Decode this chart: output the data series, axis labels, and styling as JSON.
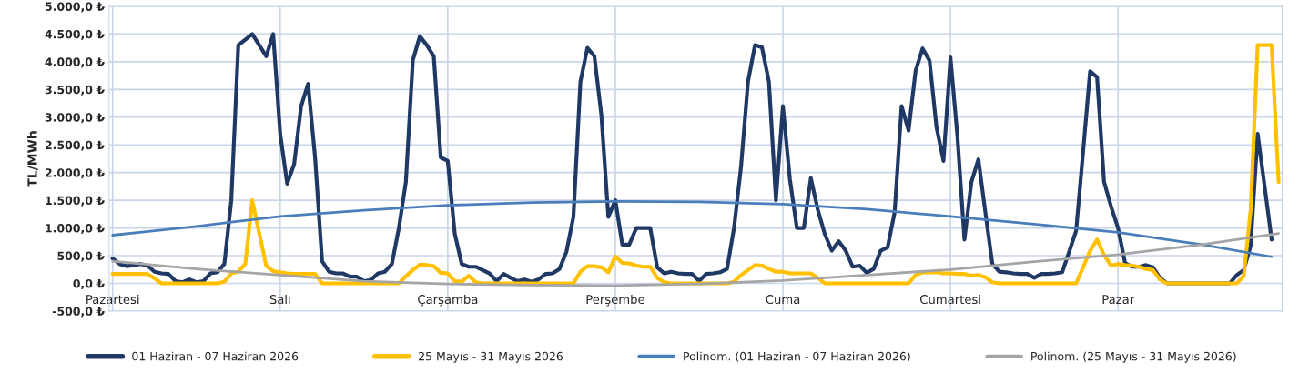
{
  "chart_data": {
    "type": "line",
    "ylabel": "TL/MWh",
    "categories": [
      "Pazartesi",
      null,
      null,
      null,
      null,
      null,
      null,
      null,
      null,
      null,
      null,
      null,
      null,
      null,
      null,
      null,
      null,
      null,
      null,
      null,
      null,
      null,
      null,
      null,
      "Salı",
      null,
      null,
      null,
      null,
      null,
      null,
      null,
      null,
      null,
      null,
      null,
      null,
      null,
      null,
      null,
      null,
      null,
      null,
      null,
      null,
      null,
      null,
      null,
      "Çarşamba",
      null,
      null,
      null,
      null,
      null,
      null,
      null,
      null,
      null,
      null,
      null,
      null,
      null,
      null,
      null,
      null,
      null,
      null,
      null,
      null,
      null,
      null,
      null,
      "Perşembe",
      null,
      null,
      null,
      null,
      null,
      null,
      null,
      null,
      null,
      null,
      null,
      null,
      null,
      null,
      null,
      null,
      null,
      null,
      null,
      null,
      null,
      null,
      null,
      "Cuma",
      null,
      null,
      null,
      null,
      null,
      null,
      null,
      null,
      null,
      null,
      null,
      null,
      null,
      null,
      null,
      null,
      null,
      null,
      null,
      null,
      null,
      null,
      null,
      "Cumartesi",
      null,
      null,
      null,
      null,
      null,
      null,
      null,
      null,
      null,
      null,
      null,
      null,
      null,
      null,
      null,
      null,
      null,
      null,
      null,
      null,
      null,
      null,
      null,
      "Pazar",
      null,
      null,
      null,
      null,
      null,
      null,
      null,
      null,
      null,
      null,
      null,
      null,
      null,
      null,
      null,
      null,
      null,
      null,
      null,
      null,
      null,
      null,
      null
    ],
    "series": [
      {
        "name": "01 Haziran - 07 Haziran 2026",
        "color": "#1f3864",
        "values": [
          450,
          350,
          310,
          330,
          350,
          320,
          210,
          180,
          170,
          40,
          20,
          70,
          20,
          40,
          180,
          200,
          350,
          1500,
          4300,
          4400,
          4500,
          4300,
          4100,
          4500,
          2700,
          1800,
          2150,
          3200,
          3600,
          2270,
          400,
          210,
          180,
          180,
          120,
          120,
          40,
          60,
          180,
          210,
          350,
          1000,
          1830,
          4030,
          4460,
          4300,
          4100,
          2270,
          2210,
          900,
          350,
          300,
          300,
          240,
          180,
          40,
          170,
          100,
          40,
          70,
          30,
          70,
          170,
          180,
          260,
          570,
          1200,
          3640,
          4250,
          4100,
          3040,
          1200,
          1500,
          700,
          700,
          1000,
          1000,
          1000,
          290,
          180,
          210,
          180,
          170,
          170,
          40,
          170,
          180,
          200,
          260,
          1000,
          2100,
          3640,
          4300,
          4260,
          3640,
          1500,
          3200,
          1880,
          1000,
          1000,
          1900,
          1330,
          890,
          590,
          760,
          590,
          300,
          320,
          190,
          260,
          590,
          650,
          1280,
          3200,
          2760,
          3830,
          4240,
          4020,
          2820,
          2210,
          4080,
          2650,
          790,
          1830,
          2240,
          1280,
          350,
          210,
          200,
          180,
          170,
          170,
          100,
          170,
          170,
          180,
          200,
          570,
          950,
          2380,
          3830,
          3720,
          1830,
          1390,
          1000,
          370,
          300,
          300,
          330,
          290,
          100,
          0,
          0,
          0,
          0,
          0,
          0,
          0,
          0,
          0,
          0,
          150,
          240,
          680,
          2700,
          1750,
          790,
          null
        ]
      },
      {
        "name": "25 Mayıs - 31 Mayıs 2026",
        "color": "#ffc000",
        "values": [
          170,
          170,
          170,
          170,
          170,
          170,
          90,
          0,
          0,
          0,
          0,
          0,
          0,
          0,
          0,
          0,
          30,
          180,
          210,
          350,
          1500,
          900,
          320,
          220,
          200,
          180,
          170,
          170,
          170,
          170,
          0,
          0,
          0,
          0,
          0,
          0,
          0,
          0,
          0,
          0,
          0,
          0,
          130,
          240,
          340,
          330,
          310,
          190,
          180,
          40,
          30,
          140,
          20,
          0,
          0,
          0,
          0,
          0,
          0,
          0,
          0,
          0,
          0,
          0,
          0,
          0,
          0,
          210,
          310,
          310,
          290,
          200,
          490,
          370,
          360,
          320,
          300,
          300,
          100,
          20,
          0,
          0,
          0,
          0,
          0,
          0,
          0,
          0,
          0,
          30,
          150,
          240,
          330,
          320,
          260,
          210,
          210,
          180,
          180,
          180,
          180,
          100,
          0,
          0,
          0,
          0,
          0,
          0,
          0,
          0,
          0,
          0,
          0,
          0,
          0,
          150,
          200,
          200,
          200,
          180,
          180,
          170,
          170,
          140,
          150,
          110,
          20,
          0,
          0,
          0,
          0,
          0,
          0,
          0,
          0,
          0,
          0,
          0,
          0,
          290,
          590,
          790,
          510,
          320,
          350,
          330,
          320,
          300,
          260,
          240,
          70,
          0,
          0,
          0,
          0,
          0,
          0,
          0,
          0,
          0,
          0,
          0,
          130,
          1330,
          4300,
          4300,
          4300,
          1830
        ]
      },
      {
        "name": "Polinom. (01 Haziran - 07 Haziran 2026)",
        "type": "line",
        "color": "#4a7ebb",
        "values": [
          870,
          null,
          null,
          null,
          null,
          null,
          null,
          null,
          null,
          null,
          null,
          null,
          1030,
          null,
          null,
          null,
          null,
          null,
          null,
          null,
          null,
          null,
          null,
          null,
          1210,
          null,
          null,
          null,
          null,
          null,
          null,
          null,
          null,
          null,
          null,
          null,
          1320,
          null,
          null,
          null,
          null,
          null,
          null,
          null,
          null,
          null,
          null,
          null,
          1410,
          null,
          null,
          null,
          null,
          null,
          null,
          null,
          null,
          null,
          null,
          null,
          1460,
          null,
          null,
          null,
          null,
          null,
          null,
          null,
          null,
          null,
          null,
          null,
          1480,
          null,
          null,
          null,
          null,
          null,
          null,
          null,
          null,
          null,
          null,
          null,
          1470,
          null,
          null,
          null,
          null,
          null,
          null,
          null,
          null,
          null,
          null,
          null,
          1430,
          null,
          null,
          null,
          null,
          null,
          null,
          null,
          null,
          null,
          null,
          null,
          1340,
          null,
          null,
          null,
          null,
          null,
          null,
          null,
          null,
          null,
          null,
          null,
          1210,
          null,
          null,
          null,
          null,
          null,
          null,
          null,
          null,
          null,
          null,
          null,
          1070,
          null,
          null,
          null,
          null,
          null,
          null,
          null,
          null,
          null,
          null,
          null,
          920,
          null,
          null,
          null,
          null,
          null,
          null,
          null,
          null,
          null,
          null,
          null,
          700,
          null,
          null,
          null,
          null,
          null,
          null,
          null,
          null,
          null,
          480,
          null
        ]
      },
      {
        "name": "Polinom. (25 Mayıs - 31 Mayıs 2026)",
        "type": "line",
        "color": "#a5a5a5",
        "values": [
          400,
          null,
          null,
          null,
          null,
          null,
          null,
          null,
          null,
          null,
          null,
          null,
          260,
          null,
          null,
          null,
          null,
          null,
          null,
          null,
          null,
          null,
          null,
          null,
          150,
          null,
          null,
          null,
          null,
          null,
          null,
          null,
          null,
          null,
          null,
          null,
          40,
          null,
          null,
          null,
          null,
          null,
          null,
          null,
          null,
          null,
          null,
          null,
          -10,
          null,
          null,
          null,
          null,
          null,
          null,
          null,
          null,
          null,
          null,
          null,
          -30,
          null,
          null,
          null,
          null,
          null,
          null,
          null,
          null,
          null,
          null,
          null,
          -40,
          null,
          null,
          null,
          null,
          null,
          null,
          null,
          null,
          null,
          null,
          null,
          -10,
          null,
          null,
          null,
          null,
          null,
          null,
          null,
          null,
          null,
          null,
          null,
          50,
          null,
          null,
          null,
          null,
          null,
          null,
          null,
          null,
          null,
          null,
          null,
          150,
          null,
          null,
          null,
          null,
          null,
          null,
          null,
          null,
          null,
          null,
          null,
          250,
          null,
          null,
          null,
          null,
          null,
          null,
          null,
          null,
          null,
          null,
          null,
          390,
          null,
          null,
          null,
          null,
          null,
          null,
          null,
          null,
          null,
          null,
          null,
          520,
          null,
          null,
          null,
          null,
          null,
          null,
          null,
          null,
          null,
          null,
          null,
          700,
          null,
          null,
          null,
          null,
          null,
          null,
          null,
          null,
          null,
          null,
          900
        ]
      }
    ],
    "ylim": [
      -500,
      5000
    ],
    "yticks": [
      {
        "value": -500,
        "label": "-500,0 ₺"
      },
      {
        "value": 0,
        "label": "0,0 ₺"
      },
      {
        "value": 500,
        "label": "500,0 ₺"
      },
      {
        "value": 1000,
        "label": "1.000,0 ₺"
      },
      {
        "value": 1500,
        "label": "1.500,0 ₺"
      },
      {
        "value": 2000,
        "label": "2.000,0 ₺"
      },
      {
        "value": 2500,
        "label": "2.500,0 ₺"
      },
      {
        "value": 3000,
        "label": "3.000,0 ₺"
      },
      {
        "value": 3500,
        "label": "3.500,0 ₺"
      },
      {
        "value": 4000,
        "label": "4.000,0 ₺"
      },
      {
        "value": 4500,
        "label": "4.500,0 ₺"
      },
      {
        "value": 5000,
        "label": "5.000,0 ₺"
      }
    ],
    "grid": true,
    "legend": "bottom"
  }
}
